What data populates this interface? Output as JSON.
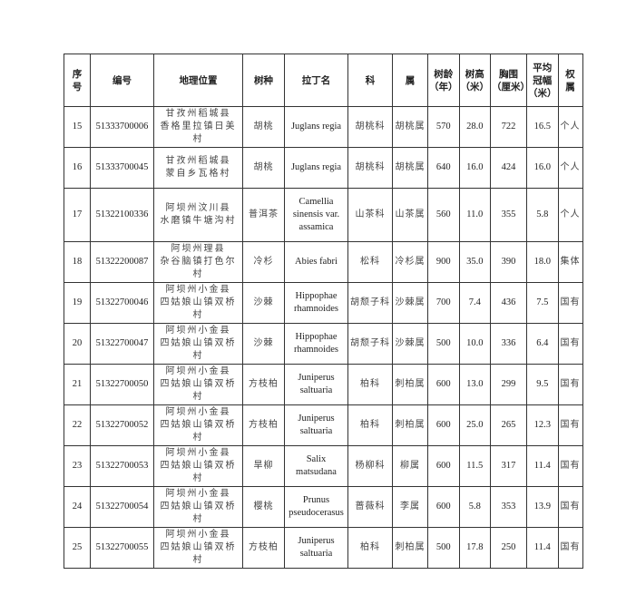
{
  "headers": [
    "序\n号",
    "编号",
    "地理位置",
    "树种",
    "拉丁名",
    "科",
    "属",
    "树龄\n（年）",
    "树高\n（米）",
    "胸围\n（厘米）",
    "平均\n冠幅\n（米）",
    "权\n属"
  ],
  "rows": [
    [
      "15",
      "51333700006",
      "甘孜州稻城县\n香格里拉镇日美村",
      "胡桃",
      "Juglans regia",
      "胡桃科",
      "胡桃属",
      "570",
      "28.0",
      "722",
      "16.5",
      "个人"
    ],
    [
      "16",
      "51333700045",
      "甘孜州稻城县\n蒙自乡瓦格村",
      "胡桃",
      "Juglans regia",
      "胡桃科",
      "胡桃属",
      "640",
      "16.0",
      "424",
      "16.0",
      "个人"
    ],
    [
      "17",
      "51322100336",
      "阿坝州汶川县\n水磨镇牛塘沟村",
      "普洱茶",
      "Camellia\nsinensis var.\nassamica",
      "山茶科",
      "山茶属",
      "560",
      "11.0",
      "355",
      "5.8",
      "个人"
    ],
    [
      "18",
      "51322200087",
      "阿坝州理县\n杂谷脑镇打色尔村",
      "冷杉",
      "Abies fabri",
      "松科",
      "冷杉属",
      "900",
      "35.0",
      "390",
      "18.0",
      "集体"
    ],
    [
      "19",
      "51322700046",
      "阿坝州小金县\n四姑娘山镇双桥村",
      "沙棘",
      "Hippophae\nrhamnoides",
      "胡颓子科",
      "沙棘属",
      "700",
      "7.4",
      "436",
      "7.5",
      "国有"
    ],
    [
      "20",
      "51322700047",
      "阿坝州小金县\n四姑娘山镇双桥村",
      "沙棘",
      "Hippophae\nrhamnoides",
      "胡颓子科",
      "沙棘属",
      "500",
      "10.0",
      "336",
      "6.4",
      "国有"
    ],
    [
      "21",
      "51322700050",
      "阿坝州小金县\n四姑娘山镇双桥村",
      "方枝柏",
      "Juniperus\nsaltuaria",
      "柏科",
      "刺柏属",
      "600",
      "13.0",
      "299",
      "9.5",
      "国有"
    ],
    [
      "22",
      "51322700052",
      "阿坝州小金县\n四姑娘山镇双桥村",
      "方枝柏",
      "Juniperus\nsaltuaria",
      "柏科",
      "刺柏属",
      "600",
      "25.0",
      "265",
      "12.3",
      "国有"
    ],
    [
      "23",
      "51322700053",
      "阿坝州小金县\n四姑娘山镇双桥村",
      "旱柳",
      "Salix\nmatsudana",
      "杨柳科",
      "柳属",
      "600",
      "11.5",
      "317",
      "11.4",
      "国有"
    ],
    [
      "24",
      "51322700054",
      "阿坝州小金县\n四姑娘山镇双桥村",
      "樱桃",
      "Prunus\npseudocerasus",
      "蔷薇科",
      "李属",
      "600",
      "5.8",
      "353",
      "13.9",
      "国有"
    ],
    [
      "25",
      "51322700055",
      "阿坝州小金县\n四姑娘山镇双桥村",
      "方枝柏",
      "Juniperus\nsaltuaria",
      "柏科",
      "刺柏属",
      "500",
      "17.8",
      "250",
      "11.4",
      "国有"
    ]
  ]
}
